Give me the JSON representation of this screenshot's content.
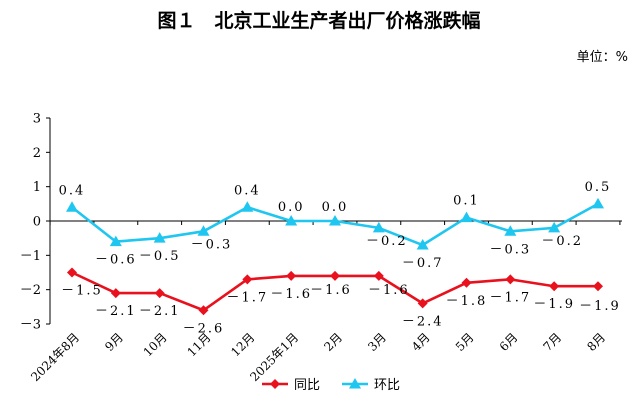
{
  "title": "图１　北京工业生产者出厂价格涨跌幅",
  "unit": "单位：%",
  "chart_data": {
    "type": "line",
    "categories": [
      "2024年8月",
      "9月",
      "10月",
      "11月",
      "12月",
      "2025年1月",
      "2月",
      "3月",
      "4月",
      "5月",
      "6月",
      "7月",
      "8月"
    ],
    "ylim": [
      -3,
      3
    ],
    "yticks": [
      -3,
      -2,
      -1,
      0,
      1,
      2,
      3
    ],
    "grid": false,
    "legend_position": "bottom",
    "series": [
      {
        "name": "同比",
        "color": "#e8111d",
        "marker": "diamond",
        "values": [
          -1.5,
          -2.1,
          -2.1,
          -2.6,
          -1.7,
          -1.6,
          -1.6,
          -1.6,
          -2.4,
          -1.8,
          -1.7,
          -1.9,
          -1.9
        ],
        "labels": [
          "－1.5",
          "－2.1",
          "－2.1",
          "－2.6",
          "－1.7",
          "－1.6",
          "－1.6",
          "－1.6",
          "－2.4",
          "－1.8",
          "－1.7",
          "－1.9",
          "－1.9"
        ]
      },
      {
        "name": "环比",
        "color": "#1ec6f0",
        "marker": "triangle",
        "values": [
          0.4,
          -0.6,
          -0.5,
          -0.3,
          0.4,
          0.0,
          0.0,
          -0.2,
          -0.7,
          0.1,
          -0.3,
          -0.2,
          0.5
        ],
        "labels": [
          "0.4",
          "－0.6",
          "－0.5",
          "－0.3",
          "0.4",
          "0.0",
          "0.0",
          "－0.2",
          "－0.7",
          "0.1",
          "－0.3",
          "－0.2",
          "0.5"
        ]
      }
    ]
  }
}
